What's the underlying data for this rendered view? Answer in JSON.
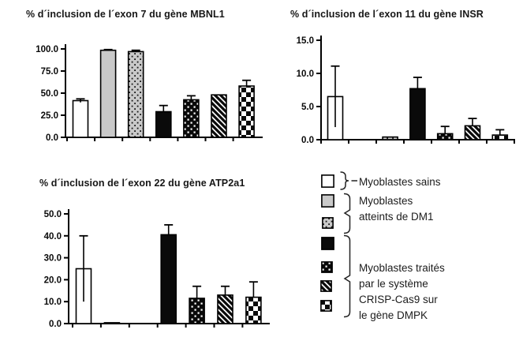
{
  "colors": {
    "gray": "#c9c9c9",
    "black": "#0a0a0a",
    "bg": "#ffffff",
    "text": "#1c1c1c"
  },
  "chart_data": [
    {
      "id": "mbnl1",
      "type": "bar",
      "title": "% d´inclusion de l´exon 7 du gène MBNL1",
      "categories": [
        "white",
        "gray",
        "gray-dots",
        "black",
        "black-dots",
        "hatch",
        "checker"
      ],
      "values": [
        41.5,
        98.5,
        97.0,
        29.0,
        42.5,
        48.0,
        58.0
      ],
      "errors": [
        2.0,
        0.8,
        1.5,
        7.0,
        4.5,
        0.0,
        6.5
      ],
      "xlabel": "",
      "ylabel": "",
      "ylim": [
        0,
        100
      ],
      "yticks": [
        0,
        25,
        50,
        75,
        100
      ],
      "ytick_labels": [
        "0.0",
        "25.0",
        "50.0",
        "75.0",
        "100.0"
      ],
      "grid": false,
      "legend_position": "none"
    },
    {
      "id": "insr",
      "type": "bar",
      "title": "% d´inclusion de l´exon 11 du gène INSR",
      "categories": [
        "white",
        "gray",
        "gray-dots",
        "black",
        "black-dots",
        "hatch",
        "checker"
      ],
      "values": [
        6.5,
        0.0,
        0.4,
        7.7,
        0.9,
        2.1,
        0.7
      ],
      "errors": [
        4.6,
        0.0,
        0.0,
        1.7,
        1.1,
        1.1,
        0.8
      ],
      "xlabel": "",
      "ylabel": "",
      "ylim": [
        0,
        15
      ],
      "yticks": [
        0,
        5,
        10,
        15
      ],
      "ytick_labels": [
        "0.0",
        "5.0",
        "10.0",
        "15.0"
      ],
      "grid": false,
      "legend_position": "none"
    },
    {
      "id": "atp2a1",
      "type": "bar",
      "title": "% d´inclusion de l´exon 22 du gène ATP2a1",
      "categories": [
        "white",
        "gray",
        "gray-dots",
        "black",
        "black-dots",
        "hatch",
        "checker"
      ],
      "values": [
        25.0,
        0.4,
        0.0,
        40.5,
        11.5,
        13.0,
        12.0
      ],
      "errors": [
        15.0,
        0.0,
        0.0,
        4.5,
        5.5,
        4.0,
        7.0
      ],
      "xlabel": "",
      "ylabel": "",
      "ylim": [
        0,
        50
      ],
      "yticks": [
        0,
        10,
        20,
        30,
        40,
        50
      ],
      "ytick_labels": [
        "0.0",
        "10.0",
        "20.0",
        "30.0",
        "40.0",
        "50.0"
      ],
      "grid": false,
      "legend_position": "none"
    }
  ],
  "legend": {
    "groups": [
      {
        "swatches": [
          "white"
        ],
        "lines": [
          "Myoblastes sains"
        ]
      },
      {
        "swatches": [
          "gray",
          "gray-dots"
        ],
        "lines": [
          "Myoblastes",
          "atteints de DM1"
        ]
      },
      {
        "swatches": [
          "black",
          "black-dots",
          "hatch",
          "checker"
        ],
        "lines": [
          "Myoblastes traités",
          "par le système",
          "CRISP-Cas9 sur",
          "le gène DMPK"
        ]
      }
    ]
  }
}
